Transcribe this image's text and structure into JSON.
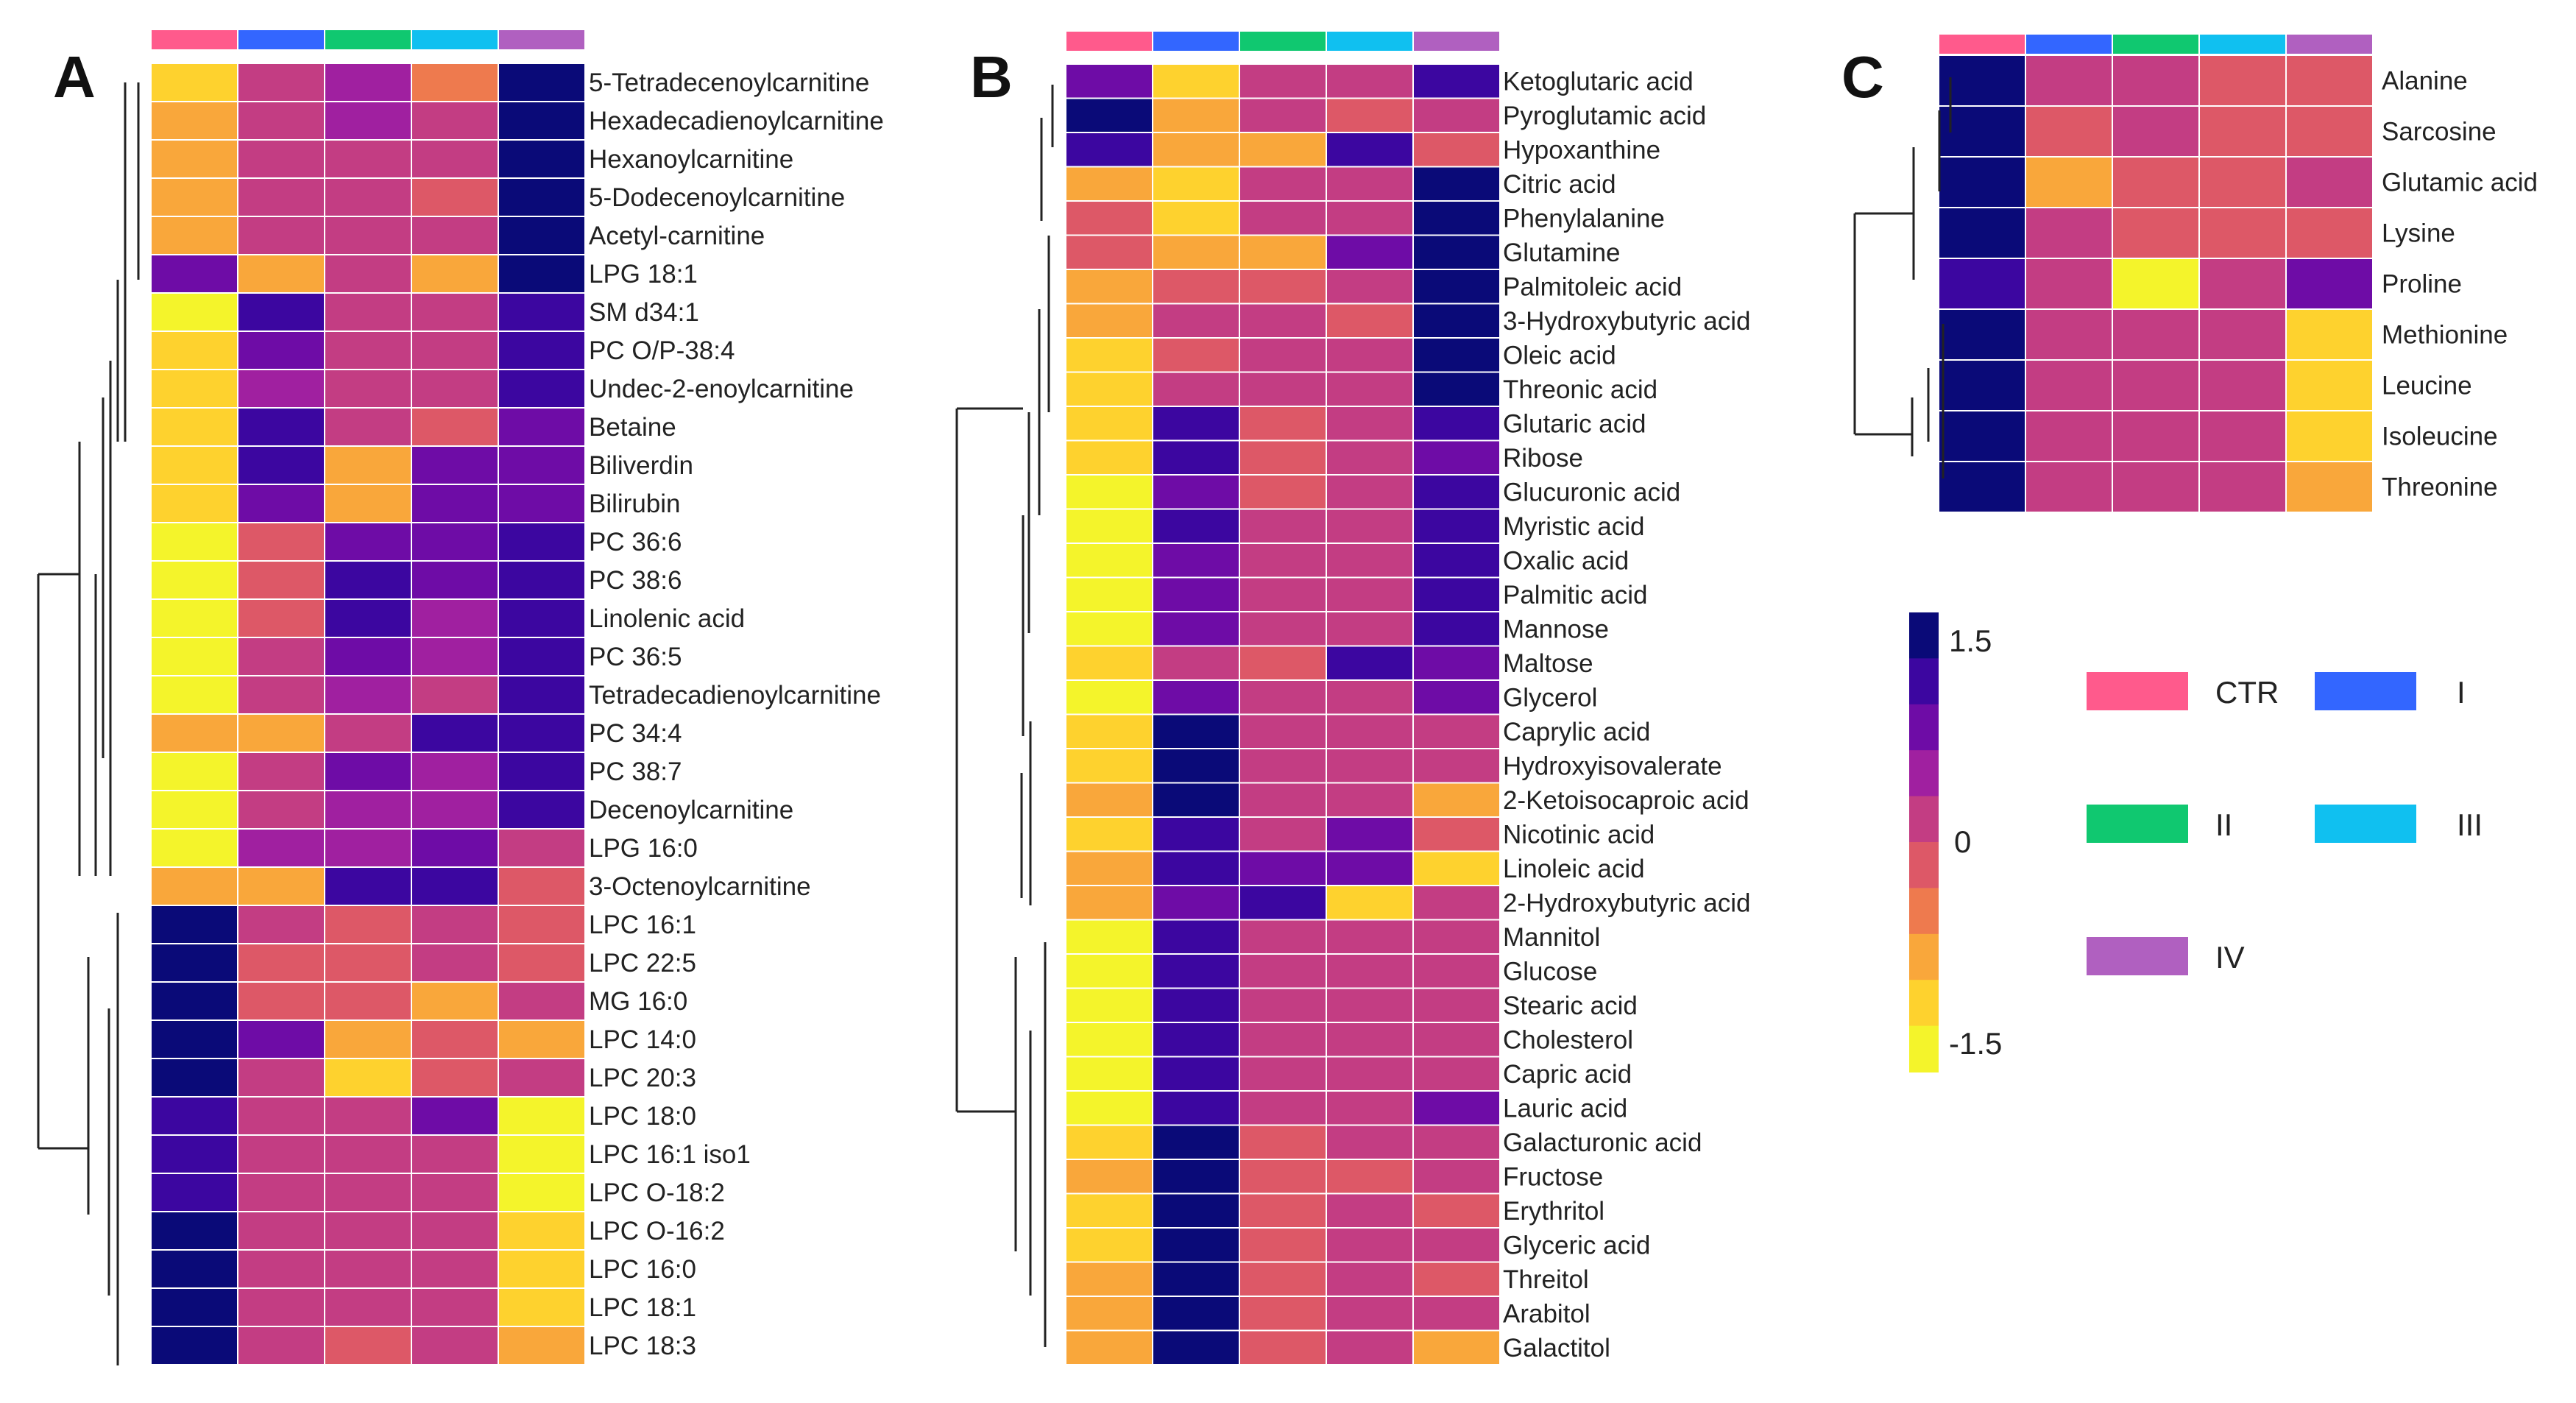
{
  "colors": {
    "scale": [
      "#f4f42b",
      "#fed22e",
      "#f9a73b",
      "#ee7a4e",
      "#dd5867",
      "#c33d83",
      "#a020a0",
      "#6e0ca6",
      "#3c06a0",
      "#0a0a78"
    ],
    "groups": {
      "CTR": "#ff5a8c",
      "I": "#3366ff",
      "II": "#10c870",
      "III": "#10c0f0",
      "IV": "#b060c0"
    }
  },
  "legend": {
    "colorbar_max": "1.5",
    "colorbar_mid": "0",
    "colorbar_min": "-1.5",
    "groups": [
      "CTR",
      "I",
      "II",
      "III",
      "IV"
    ]
  },
  "chart_data": [
    {
      "type": "heatmap",
      "panel": "A",
      "columns": [
        "CTR",
        "I",
        "II",
        "III",
        "IV"
      ],
      "color_range": [
        -1.5,
        1.5
      ],
      "rows": [
        "5-Tetradecenoylcarnitine",
        "Hexadecadienoylcarnitine",
        "Hexanoylcarnitine",
        "5-Dodecenoylcarnitine",
        "Acetyl-carnitine",
        "LPG 18:1",
        "SM d34:1",
        "PC O/P-38:4",
        "Undec-2-enoylcarnitine",
        "Betaine",
        "Biliverdin",
        "Bilirubin",
        "PC 36:6",
        "PC 38:6",
        "Linolenic acid",
        "PC 36:5",
        "Tetradecadienoylcarnitine",
        "PC 34:4",
        "PC 38:7",
        "Decenoylcarnitine",
        "LPG 16:0",
        "3-Octenoylcarnitine",
        "LPC 16:1",
        "LPC 22:5",
        "MG 16:0",
        "LPC 14:0",
        "LPC 20:3",
        "LPC 18:0",
        "LPC 16:1 iso1",
        "LPC O-18:2",
        "LPC O-16:2",
        "LPC 16:0",
        "LPC 18:1",
        "LPC 18:3"
      ],
      "values": [
        [
          -1.2,
          0.0,
          0.5,
          -0.6,
          1.5
        ],
        [
          -1.0,
          0.0,
          0.5,
          0.0,
          1.5
        ],
        [
          -0.8,
          0.0,
          0.0,
          0.0,
          1.5
        ],
        [
          -0.8,
          0.0,
          0.0,
          -0.3,
          1.5
        ],
        [
          -0.8,
          0.0,
          0.0,
          0.0,
          1.5
        ],
        [
          0.7,
          -0.8,
          0.0,
          -1.0,
          1.5
        ],
        [
          -1.5,
          1.0,
          0.0,
          0.0,
          1.0
        ],
        [
          -1.2,
          0.7,
          0.0,
          0.0,
          1.2
        ],
        [
          -1.2,
          0.5,
          0.0,
          0.0,
          1.2
        ],
        [
          -1.2,
          1.2,
          0.0,
          -0.3,
          0.7
        ],
        [
          -1.2,
          1.0,
          -1.0,
          0.7,
          0.7
        ],
        [
          -1.2,
          0.7,
          -1.0,
          0.7,
          0.7
        ],
        [
          -1.5,
          -0.3,
          0.7,
          0.7,
          1.0
        ],
        [
          -1.5,
          -0.3,
          1.0,
          0.7,
          1.0
        ],
        [
          -1.5,
          -0.3,
          1.0,
          0.5,
          1.0
        ],
        [
          -1.5,
          0.0,
          0.7,
          0.5,
          1.0
        ],
        [
          -1.5,
          0.0,
          0.5,
          0.0,
          1.2
        ],
        [
          -0.8,
          -0.8,
          0.0,
          1.0,
          1.0
        ],
        [
          -1.5,
          0.3,
          0.7,
          0.5,
          1.0
        ],
        [
          -1.5,
          0.3,
          0.5,
          0.5,
          1.0
        ],
        [
          -1.5,
          0.5,
          0.5,
          0.7,
          0.3
        ],
        [
          -0.8,
          -0.8,
          1.2,
          1.0,
          -0.3
        ],
        [
          1.5,
          0.0,
          -0.3,
          0.0,
          -0.3
        ],
        [
          1.5,
          -0.3,
          -0.3,
          0.0,
          -0.3
        ],
        [
          1.5,
          -0.3,
          -0.3,
          -1.0,
          0.3
        ],
        [
          1.5,
          0.7,
          -0.8,
          -0.3,
          -0.8
        ],
        [
          1.5,
          0.0,
          -1.2,
          -0.3,
          0.3
        ],
        [
          1.2,
          0.0,
          0.0,
          0.7,
          -1.5
        ],
        [
          1.2,
          0.0,
          0.0,
          0.3,
          -1.5
        ],
        [
          1.2,
          0.3,
          0.0,
          0.3,
          -1.5
        ],
        [
          1.5,
          0.3,
          0.0,
          0.3,
          -1.2
        ],
        [
          1.5,
          0.3,
          0.0,
          0.3,
          -1.2
        ],
        [
          1.5,
          0.0,
          0.0,
          0.0,
          -1.2
        ],
        [
          1.5,
          0.0,
          -0.3,
          0.0,
          -0.8
        ]
      ],
      "dendrogram": "left"
    },
    {
      "type": "heatmap",
      "panel": "B",
      "columns": [
        "CTR",
        "I",
        "II",
        "III",
        "IV"
      ],
      "color_range": [
        -1.5,
        1.5
      ],
      "rows": [
        "Ketoglutaric acid",
        "Pyroglutamic acid",
        "Hypoxanthine",
        "Citric acid",
        "Phenylalanine",
        "Glutamine",
        "Palmitoleic acid",
        "3-Hydroxybutyric acid",
        "Oleic acid",
        "Threonic acid",
        "Glutaric acid",
        "Ribose",
        "Glucuronic acid",
        "Myristic acid",
        "Oxalic acid",
        "Palmitic acid",
        "Mannose",
        "Maltose",
        "Glycerol",
        "Caprylic acid",
        "Hydroxyisovalerate",
        "2-Ketoisocaproic acid",
        "Nicotinic acid",
        "Linoleic acid",
        "2-Hydroxybutyric acid",
        "Mannitol",
        "Glucose",
        "Stearic acid",
        "Cholesterol",
        "Capric acid",
        "Lauric acid",
        "Galacturonic acid",
        "Fructose",
        "Erythritol",
        "Glyceric acid",
        "Threitol",
        "Arabitol",
        "Galactitol"
      ],
      "values": [
        [
          0.7,
          -1.2,
          0.0,
          0.0,
          1.2
        ],
        [
          1.5,
          -0.8,
          0.0,
          -0.3,
          0.3
        ],
        [
          1.2,
          -0.8,
          -0.8,
          1.0,
          -0.3
        ],
        [
          -0.8,
          -1.2,
          0.0,
          0.0,
          1.5
        ],
        [
          -0.3,
          -1.2,
          0.3,
          0.3,
          1.5
        ],
        [
          -0.3,
          -0.8,
          -1.0,
          0.7,
          1.5
        ],
        [
          -0.8,
          -0.3,
          -0.3,
          0.0,
          1.5
        ],
        [
          -0.8,
          0.0,
          0.3,
          -0.3,
          1.5
        ],
        [
          -1.2,
          -0.3,
          0.0,
          0.3,
          1.5
        ],
        [
          -1.2,
          0.0,
          0.0,
          0.0,
          1.5
        ],
        [
          -1.2,
          1.0,
          -0.3,
          0.0,
          1.0
        ],
        [
          -1.2,
          1.0,
          -0.3,
          0.0,
          0.7
        ],
        [
          -1.5,
          0.7,
          -0.3,
          0.3,
          1.2
        ],
        [
          -1.5,
          1.0,
          0.0,
          0.0,
          1.0
        ],
        [
          -1.5,
          0.7,
          0.0,
          0.0,
          1.2
        ],
        [
          -1.5,
          0.7,
          0.0,
          0.0,
          1.2
        ],
        [
          -1.5,
          0.7,
          0.3,
          0.0,
          1.0
        ],
        [
          -1.2,
          0.3,
          -0.3,
          1.0,
          0.7
        ],
        [
          -1.5,
          0.7,
          0.3,
          0.3,
          0.7
        ],
        [
          -1.2,
          1.5,
          0.3,
          0.0,
          0.0
        ],
        [
          -1.2,
          1.5,
          0.3,
          0.0,
          0.0
        ],
        [
          -0.8,
          1.5,
          0.3,
          0.0,
          -0.8
        ],
        [
          -1.2,
          1.2,
          0.3,
          0.7,
          -0.3
        ],
        [
          -0.8,
          1.2,
          0.7,
          0.7,
          -1.2
        ],
        [
          -0.8,
          0.7,
          1.0,
          -1.2,
          0.3
        ],
        [
          -1.5,
          1.2,
          0.3,
          0.3,
          0.0
        ],
        [
          -1.5,
          1.2,
          0.3,
          0.0,
          0.0
        ],
        [
          -1.5,
          1.2,
          0.3,
          0.3,
          0.0
        ],
        [
          -1.5,
          1.2,
          0.3,
          0.3,
          0.0
        ],
        [
          -1.5,
          1.2,
          0.0,
          0.0,
          0.0
        ],
        [
          -1.5,
          1.2,
          0.0,
          0.0,
          0.7
        ],
        [
          -1.2,
          1.5,
          -0.3,
          0.0,
          0.3
        ],
        [
          -0.8,
          1.5,
          -0.3,
          -0.3,
          0.0
        ],
        [
          -1.2,
          1.5,
          -0.3,
          0.3,
          -0.3
        ],
        [
          -1.2,
          1.5,
          -0.3,
          0.3,
          0.0
        ],
        [
          -0.8,
          1.5,
          -0.3,
          0.3,
          -0.3
        ],
        [
          -0.8,
          1.5,
          -0.3,
          0.3,
          0.0
        ],
        [
          -0.8,
          1.5,
          -0.3,
          0.3,
          -0.8
        ]
      ],
      "dendrogram": "left"
    },
    {
      "type": "heatmap",
      "panel": "C",
      "columns": [
        "CTR",
        "I",
        "II",
        "III",
        "IV"
      ],
      "color_range": [
        -1.5,
        1.5
      ],
      "rows": [
        "Alanine",
        "Sarcosine",
        "Glutamic acid",
        "Lysine",
        "Proline",
        "Methionine",
        "Leucine",
        "Isoleucine",
        "Threonine"
      ],
      "values": [
        [
          1.5,
          0.0,
          0.0,
          -0.3,
          -0.3
        ],
        [
          1.5,
          -0.3,
          0.0,
          -0.3,
          -0.3
        ],
        [
          1.5,
          -0.8,
          -0.3,
          -0.3,
          0.3
        ],
        [
          1.5,
          0.3,
          -0.3,
          -0.3,
          -0.3
        ],
        [
          1.2,
          0.0,
          -1.5,
          0.3,
          0.7
        ],
        [
          1.5,
          0.0,
          0.0,
          0.0,
          -1.2
        ],
        [
          1.5,
          0.3,
          0.0,
          0.0,
          -1.2
        ],
        [
          1.5,
          0.0,
          0.0,
          0.0,
          -1.2
        ],
        [
          1.5,
          0.0,
          0.0,
          0.0,
          -0.8
        ]
      ],
      "dendrogram": "left"
    }
  ]
}
